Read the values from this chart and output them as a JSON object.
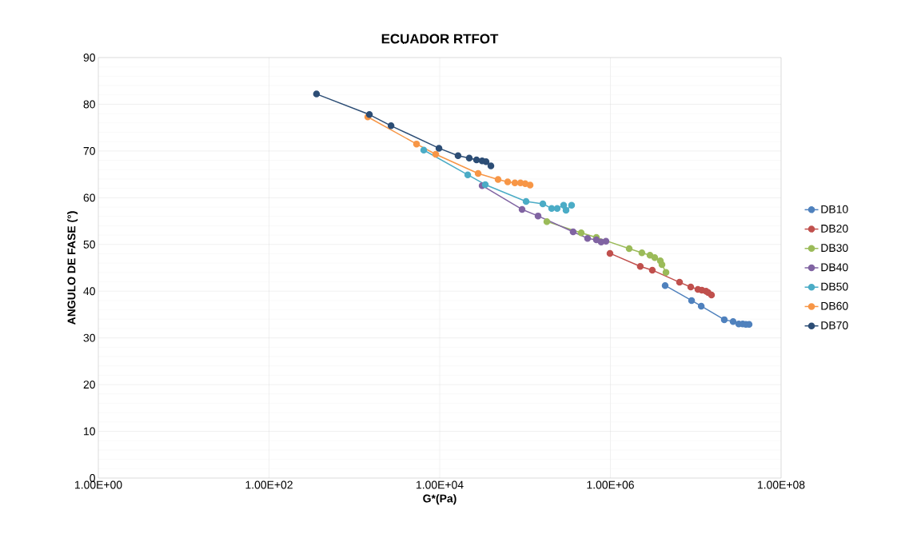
{
  "chart_data": {
    "type": "line",
    "title": "ECUADOR  RTFOT",
    "xlabel": "G*(Pa)",
    "ylabel": "ANGULO DE FASE (°)",
    "log": "x",
    "grid": true,
    "legend": "right",
    "marker": "circle",
    "line_style": "solid",
    "xlim": [
      1,
      100000000
    ],
    "ylim": [
      0,
      90
    ],
    "xticks": [
      {
        "value": 1,
        "label": "1.00E+00"
      },
      {
        "value": 100,
        "label": "1.00E+02"
      },
      {
        "value": 10000,
        "label": "1.00E+04"
      },
      {
        "value": 1000000,
        "label": "1.00E+06"
      },
      {
        "value": 100000000,
        "label": "1.00E+08"
      }
    ],
    "yticks": [
      0,
      10,
      20,
      30,
      40,
      50,
      60,
      70,
      80,
      90
    ],
    "series": [
      {
        "name": "DB10",
        "color": "#4f81bd",
        "x": [
          4380000,
          8940000,
          11600000,
          21600000,
          27400000,
          31900000,
          35500000,
          38700000,
          42200000
        ],
        "values": [
          41.2,
          38.0,
          36.8,
          33.9,
          33.5,
          33.0,
          33.0,
          32.9,
          32.9
        ]
      },
      {
        "name": "DB20",
        "color": "#c0504d",
        "x": [
          989000,
          2240000,
          3100000,
          6460000,
          8740000,
          10600000,
          11800000,
          13200000,
          14000000,
          15300000
        ],
        "values": [
          48.1,
          45.3,
          44.5,
          41.9,
          40.9,
          40.4,
          40.2,
          40.0,
          39.7,
          39.2
        ]
      },
      {
        "name": "DB30",
        "color": "#9bbb59",
        "x": [
          180000,
          455000,
          685000,
          1660000,
          2340000,
          2910000,
          3310000,
          3850000,
          4020000,
          4480000
        ],
        "values": [
          54.9,
          52.5,
          51.5,
          49.1,
          48.2,
          47.7,
          47.2,
          46.5,
          45.7,
          44.0
        ]
      },
      {
        "name": "DB40",
        "color": "#8064a2",
        "x": [
          31400,
          92300,
          142000,
          366000,
          540000,
          685000,
          780000,
          888000
        ],
        "values": [
          62.6,
          57.5,
          56.1,
          52.7,
          51.3,
          51.0,
          50.5,
          50.7
        ]
      },
      {
        "name": "DB50",
        "color": "#4bacc6",
        "x": [
          6500,
          21300,
          34200,
          102800,
          161600,
          204800,
          238000,
          283000,
          302000,
          351000
        ],
        "values": [
          70.2,
          64.9,
          62.8,
          59.2,
          58.7,
          57.7,
          57.7,
          58.4,
          57.3,
          58.4
        ]
      },
      {
        "name": "DB60",
        "color": "#f79646",
        "x": [
          1435,
          5350,
          8980,
          28200,
          48300,
          62600,
          76000,
          88400,
          100500,
          114600
        ],
        "values": [
          77.3,
          71.5,
          69.3,
          65.2,
          63.9,
          63.4,
          63.2,
          63.2,
          63.0,
          62.7
        ]
      },
      {
        "name": "DB70",
        "color": "#2c4d75",
        "x": [
          360,
          1500,
          2690,
          9800,
          16400,
          22200,
          27000,
          31400,
          34900,
          39800
        ],
        "values": [
          82.2,
          77.8,
          75.4,
          70.6,
          69.0,
          68.5,
          68.1,
          67.9,
          67.7,
          66.8
        ]
      }
    ]
  }
}
